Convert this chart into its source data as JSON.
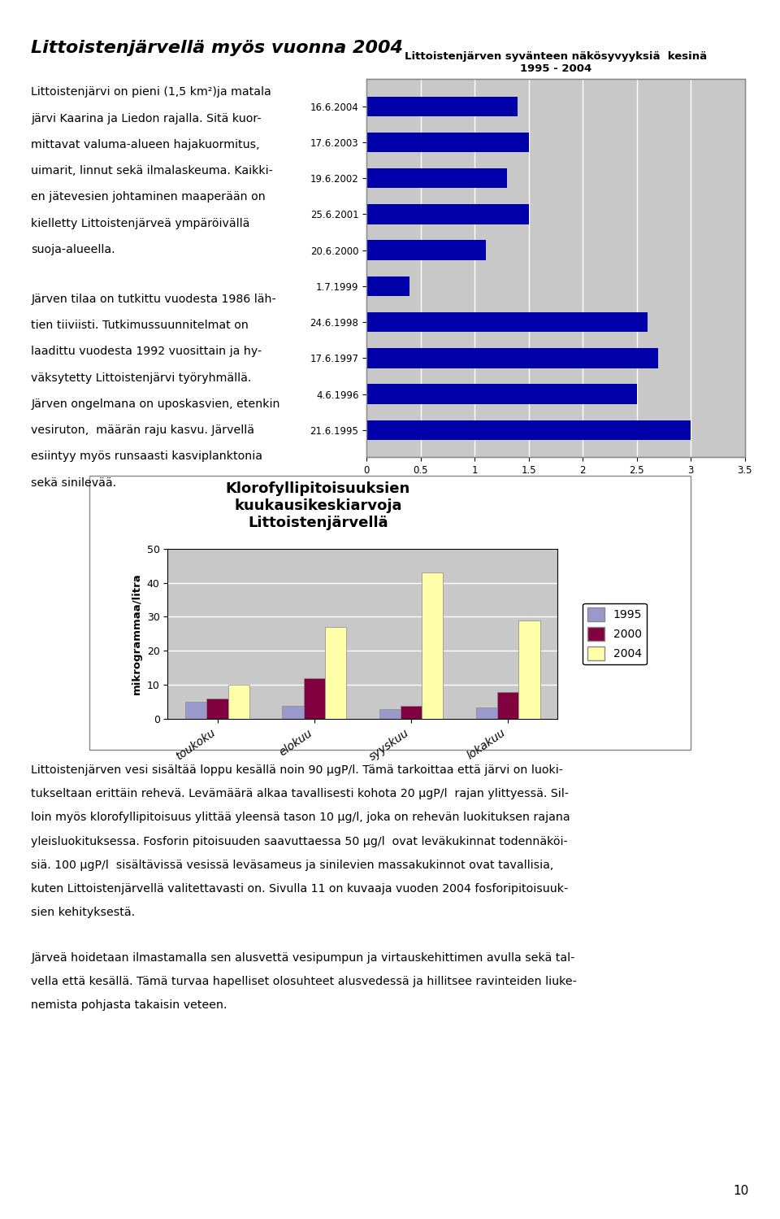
{
  "page_title": "Littoistenjärvellä myös vuonna 2004",
  "bar_chart1_title": "Littoistenjärven syvänteen näkösyvyyksiä  kesinä\n1995 - 2004",
  "bar_chart1_dates": [
    "16.6.2004",
    "17.6.2003",
    "19.6.2002",
    "25.6.2001",
    "20.6.2000",
    "1.7.1999",
    "24.6.1998",
    "17.6.1997",
    "4.6.1996",
    "21.6.1995"
  ],
  "bar_chart1_values": [
    1.4,
    1.5,
    1.3,
    1.5,
    1.1,
    0.4,
    2.6,
    2.7,
    2.5,
    3.0
  ],
  "bar_chart1_color": "#0000AA",
  "bar_chart1_xlim": [
    0,
    3.5
  ],
  "bar_chart1_xticks": [
    0,
    0.5,
    1,
    1.5,
    2,
    2.5,
    3,
    3.5
  ],
  "bar_chart1_bg": "#C8C8C8",
  "bar_chart2_title": "Klorofyllipitoisuuksien\nkuukausikeskiarvoja\nLittoistenjärvellä",
  "bar_chart2_categories": [
    "toukoku",
    "elokuu",
    "syyskuu",
    "lokakuu"
  ],
  "bar_chart2_1995": [
    5,
    4,
    3,
    3.5
  ],
  "bar_chart2_2000": [
    6,
    12,
    4,
    8
  ],
  "bar_chart2_2004": [
    10,
    27,
    43,
    29
  ],
  "bar_chart2_color_1995": "#9999CC",
  "bar_chart2_color_2000": "#800040",
  "bar_chart2_color_2004": "#FFFFAA",
  "bar_chart2_ylabel": "mikrogrammaa/litra",
  "bar_chart2_ylim": [
    0,
    50
  ],
  "bar_chart2_yticks": [
    0,
    10,
    20,
    30,
    40,
    50
  ],
  "bar_chart2_bg": "#C8C8C8",
  "page_number": "10",
  "background_color": "#FFFFFF",
  "para1_lines": [
    "Littoistenjärvi on pieni (1,5 km²)ja matala",
    "järvi Kaarina ja Liedon rajalla. Sitä kuor-",
    "mittavat valuma-alueen hajakuormitus,",
    "uimarit, linnut sekä ilmalaskeuma. Kaikki-",
    "en jätevesien johtaminen maaperään on",
    "kielletty Littoistenjärveä ympäröivällä",
    "suoja-alueella."
  ],
  "para2_lines": [
    "Järven tilaa on tutkittu vuodesta 1986 läh-",
    "tien tiiviisti. Tutkimussuunnitelmat on",
    "laadittu vuodesta 1992 vuosittain ja hy-",
    "väksytetty Littoistenjärvi työryhmällä.",
    "Järven ongelmana on uposkasvien, etenkin",
    "vesiruton,  määrän raju kasvu. Järvellä",
    "esiintyy myös runsaasti kasviplanktonia",
    "sekä sinilevää."
  ],
  "bottom_text1_lines": [
    "Littoistenjärven vesi sisältää loppu kesällä noin 90 μgP/l. Tämä tarkoittaa että järvi on luoki-",
    "tukseltaan erittäin rehevä. Levämäärä alkaa tavallisesti kohota 20 μgP/l  rajan ylittyessä. Sil-",
    "loin myös klorofyllipitoisuus ylittää yleensä tason 10 μg/l, joka on rehevän luokituksen rajana",
    "yleisluokituksessa. Fosforin pitoisuuden saavuttaessa 50 μg/l  ovat leväkukinnat todennäköi-",
    "siä. 100 μgP/l  sisältävissä vesissä leväsameus ja sinilevien massakukinnot ovat tavallisia,",
    "kuten Littoistenjärvellä valitettavasti on. Sivulla 11 on kuvaaja vuoden 2004 fosforipitoisuuk-",
    "sien kehityksestä."
  ],
  "bottom_text2_lines": [
    "Järveä hoidetaan ilmastamalla sen alusvettä vesipumpun ja virtauskehittimen avulla sekä tal-",
    "vella että kesällä. Tämä turvaa hapelliset olosuhteet alusvedessä ja hillitsee ravinteiden liuke-",
    "nemista pohjasta takaisin veteen."
  ]
}
